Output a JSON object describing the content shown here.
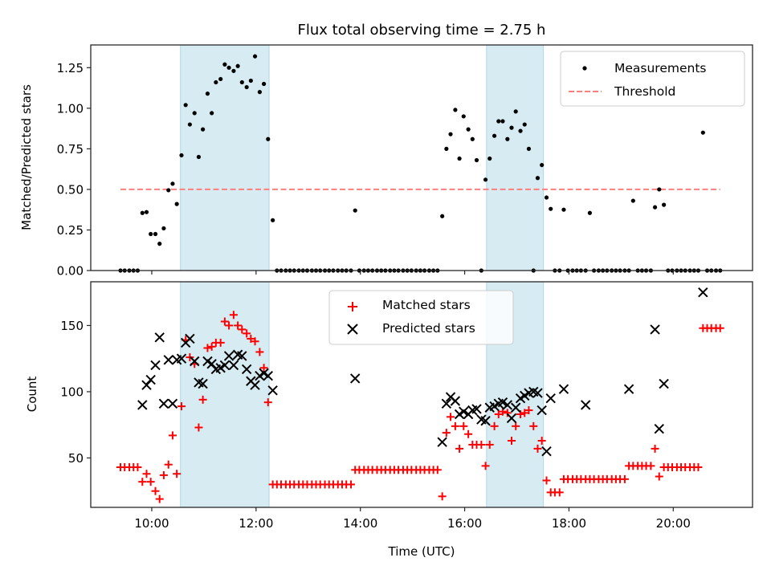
{
  "chart_data": [
    {
      "type": "scatter",
      "title": "Flux total observing time = 2.75 h",
      "xlabel": "",
      "ylabel": "Matched/Predicted stars",
      "xlim": [
        8.83,
        21.52
      ],
      "ylim": [
        0.0,
        1.39
      ],
      "yticks": [
        0.0,
        0.25,
        0.5,
        0.75,
        1.0,
        1.25
      ],
      "ytick_labels": [
        "0.00",
        "0.25",
        "0.50",
        "0.75",
        "1.00",
        "1.25"
      ],
      "xticks": [
        10,
        12,
        14,
        16,
        18,
        20
      ],
      "xtick_labels": [
        "10:00",
        "12:00",
        "14:00",
        "16:00",
        "18:00",
        "20:00"
      ],
      "show_xtick_labels": false,
      "grid": false,
      "legend": {
        "placement": "top-right",
        "entries": [
          "Measurements",
          "Threshold"
        ]
      },
      "shaded_spans": [
        [
          10.55,
          12.25
        ],
        [
          16.42,
          17.51
        ]
      ],
      "span_color": "#add8e6",
      "series": [
        {
          "name": "Measurements",
          "color": "#000000",
          "marker": "dot",
          "x": [
            9.4,
            9.48,
            9.57,
            9.65,
            9.73,
            9.82,
            9.9,
            9.98,
            10.07,
            10.15,
            10.23,
            10.32,
            10.4,
            10.48,
            10.57,
            10.65,
            10.73,
            10.82,
            10.9,
            10.98,
            11.07,
            11.15,
            11.23,
            11.32,
            11.4,
            11.48,
            11.57,
            11.65,
            11.73,
            11.82,
            11.9,
            11.98,
            12.07,
            12.15,
            12.23,
            12.32,
            12.4,
            12.48,
            12.57,
            12.65,
            12.73,
            12.82,
            12.9,
            12.98,
            13.07,
            13.15,
            13.23,
            13.32,
            13.4,
            13.48,
            13.57,
            13.65,
            13.73,
            13.82,
            13.9,
            13.98,
            14.07,
            14.15,
            14.23,
            14.32,
            14.4,
            14.48,
            14.57,
            14.65,
            14.73,
            14.82,
            14.9,
            14.98,
            15.07,
            15.15,
            15.23,
            15.32,
            15.4,
            15.48,
            15.57,
            15.65,
            15.73,
            15.82,
            15.9,
            15.98,
            16.07,
            16.15,
            16.23,
            16.32,
            16.4,
            16.48,
            16.57,
            16.65,
            16.73,
            16.82,
            16.9,
            16.98,
            17.07,
            17.15,
            17.23,
            17.32,
            17.4,
            17.48,
            17.57,
            17.65,
            17.73,
            17.82,
            17.9,
            17.98,
            18.07,
            18.15,
            18.23,
            18.32,
            18.4,
            18.48,
            18.57,
            18.65,
            18.73,
            18.82,
            18.9,
            18.98,
            19.07,
            19.15,
            19.23,
            19.32,
            19.4,
            19.48,
            19.57,
            19.65,
            19.73,
            19.82,
            19.9,
            19.98,
            20.07,
            20.15,
            20.23,
            20.32,
            20.4,
            20.48,
            20.57,
            20.65,
            20.73,
            20.82,
            20.9
          ],
          "y": [
            0,
            0,
            0,
            0,
            0,
            0.355,
            0.36,
            0.225,
            0.225,
            0.165,
            0.26,
            0.495,
            0.535,
            0.41,
            0.71,
            1.02,
            0.9,
            0.97,
            0.7,
            0.87,
            1.09,
            0.97,
            1.16,
            1.18,
            1.27,
            1.25,
            1.23,
            1.26,
            1.16,
            1.13,
            1.17,
            1.32,
            1.1,
            1.15,
            0.81,
            0.31,
            0,
            0,
            0,
            0,
            0,
            0,
            0,
            0,
            0,
            0,
            0,
            0,
            0,
            0,
            0,
            0,
            0,
            0,
            0.37,
            0,
            0,
            0,
            0,
            0,
            0,
            0,
            0,
            0,
            0,
            0,
            0,
            0,
            0,
            0,
            0,
            0,
            0,
            0,
            0.335,
            0.75,
            0.84,
            0.99,
            0.69,
            0.95,
            0.87,
            0.81,
            0.68,
            0,
            0.56,
            0.69,
            0.83,
            0.92,
            0.92,
            0.81,
            0.88,
            0.98,
            0.86,
            0.9,
            0.75,
            0,
            0.57,
            0.65,
            0.45,
            0.38,
            0,
            0,
            0.375,
            0,
            0,
            0,
            0,
            0,
            0.355,
            0,
            0,
            0,
            0,
            0,
            0,
            0,
            0,
            0,
            0.43,
            0,
            0,
            0,
            0,
            0.39,
            0.5,
            0.405,
            0,
            0,
            0,
            0,
            0,
            0,
            0,
            0,
            0.85,
            0,
            0,
            0,
            0
          ]
        },
        {
          "name": "Threshold",
          "color": "#ff7f7f",
          "style": "dashed",
          "x": [
            9.4,
            20.9
          ],
          "y": [
            0.5,
            0.5
          ]
        }
      ]
    },
    {
      "type": "scatter",
      "title": "",
      "xlabel": "Time (UTC)",
      "ylabel": "Count",
      "xlim": [
        8.83,
        21.52
      ],
      "ylim": [
        12.7,
        183
      ],
      "yticks": [
        50,
        100,
        150
      ],
      "ytick_labels": [
        "50",
        "100",
        "150"
      ],
      "xticks": [
        10,
        12,
        14,
        16,
        18,
        20
      ],
      "xtick_labels": [
        "10:00",
        "12:00",
        "14:00",
        "16:00",
        "18:00",
        "20:00"
      ],
      "grid": false,
      "legend": {
        "placement": "top-center",
        "entries": [
          "Matched stars",
          "Predicted stars"
        ]
      },
      "shaded_spans": [
        [
          10.55,
          12.25
        ],
        [
          16.42,
          17.51
        ]
      ],
      "span_color": "#add8e6",
      "series": [
        {
          "name": "Matched stars",
          "color": "#ff0000",
          "marker": "plus",
          "x": [
            9.4,
            9.48,
            9.57,
            9.65,
            9.73,
            9.82,
            9.9,
            9.98,
            10.07,
            10.15,
            10.23,
            10.32,
            10.4,
            10.48,
            10.57,
            10.65,
            10.73,
            10.82,
            10.9,
            10.98,
            11.07,
            11.15,
            11.23,
            11.32,
            11.4,
            11.48,
            11.57,
            11.65,
            11.73,
            11.82,
            11.9,
            11.98,
            12.07,
            12.15,
            12.23,
            12.32,
            12.4,
            12.48,
            12.57,
            12.65,
            12.73,
            12.82,
            12.9,
            12.98,
            13.07,
            13.15,
            13.23,
            13.32,
            13.4,
            13.48,
            13.57,
            13.65,
            13.73,
            13.82,
            13.9,
            13.98,
            14.07,
            14.15,
            14.23,
            14.32,
            14.4,
            14.48,
            14.57,
            14.65,
            14.73,
            14.82,
            14.9,
            14.98,
            15.07,
            15.15,
            15.23,
            15.32,
            15.4,
            15.48,
            15.57,
            15.65,
            15.73,
            15.82,
            15.9,
            15.98,
            16.07,
            16.15,
            16.23,
            16.32,
            16.4,
            16.48,
            16.57,
            16.65,
            16.73,
            16.82,
            16.9,
            16.98,
            17.07,
            17.15,
            17.23,
            17.32,
            17.4,
            17.48,
            17.57,
            17.65,
            17.73,
            17.82,
            17.9,
            17.98,
            18.07,
            18.15,
            18.23,
            18.32,
            18.4,
            18.48,
            18.57,
            18.65,
            18.73,
            18.82,
            18.9,
            18.98,
            19.07,
            19.15,
            19.23,
            19.32,
            19.4,
            19.48,
            19.57,
            19.65,
            19.73,
            19.82,
            19.9,
            19.98,
            20.07,
            20.15,
            20.23,
            20.32,
            20.4,
            20.48,
            20.57,
            20.65,
            20.73,
            20.82,
            20.9
          ],
          "y": [
            43,
            43,
            43,
            43,
            43,
            32,
            38,
            32,
            25,
            19,
            37,
            45,
            67,
            38,
            89,
            139,
            126,
            121,
            73,
            94,
            133,
            134,
            137,
            137,
            153,
            150,
            158,
            150,
            147,
            144,
            140,
            138,
            130,
            118,
            92,
            30,
            30,
            30,
            30,
            30,
            30,
            30,
            30,
            30,
            30,
            30,
            30,
            30,
            30,
            30,
            30,
            30,
            30,
            30,
            41,
            41,
            41,
            41,
            41,
            41,
            41,
            41,
            41,
            41,
            41,
            41,
            41,
            41,
            41,
            41,
            41,
            41,
            41,
            41,
            21,
            69,
            81,
            74,
            57,
            74,
            68,
            60,
            60,
            60,
            44,
            60,
            74,
            83,
            85,
            84,
            63,
            74,
            83,
            84,
            86,
            74,
            57,
            63,
            33,
            24,
            24,
            24,
            34,
            34,
            34,
            34,
            34,
            34,
            34,
            34,
            34,
            34,
            34,
            34,
            34,
            34,
            34,
            44,
            44,
            44,
            44,
            44,
            44,
            57,
            36,
            43,
            43,
            43,
            43,
            43,
            43,
            43,
            43,
            43,
            148,
            148,
            148,
            148,
            148
          ]
        },
        {
          "name": "Predicted stars",
          "color": "#000000",
          "marker": "x",
          "x": [
            9.82,
            9.9,
            9.98,
            10.07,
            10.15,
            10.23,
            10.32,
            10.4,
            10.48,
            10.57,
            10.65,
            10.73,
            10.82,
            10.9,
            10.98,
            11.07,
            11.15,
            11.23,
            11.32,
            11.4,
            11.48,
            11.57,
            11.65,
            11.73,
            11.82,
            11.9,
            11.98,
            12.07,
            12.15,
            12.23,
            12.32,
            13.9,
            15.57,
            15.65,
            15.73,
            15.82,
            15.9,
            15.98,
            16.07,
            16.15,
            16.23,
            16.32,
            16.4,
            16.48,
            16.57,
            16.65,
            16.73,
            16.82,
            16.9,
            16.98,
            17.07,
            17.15,
            17.23,
            17.32,
            17.4,
            17.48,
            17.57,
            17.65,
            17.9,
            18.32,
            19.15,
            19.65,
            19.73,
            19.82,
            20.57
          ],
          "y": [
            90,
            105,
            109,
            120,
            141,
            91,
            124,
            91,
            124,
            125,
            137,
            140,
            123,
            107,
            106,
            123,
            121,
            117,
            118,
            120,
            127,
            120,
            128,
            127,
            117,
            108,
            105,
            112,
            114,
            112,
            101,
            110,
            62,
            91,
            96,
            93,
            83,
            85,
            83,
            86,
            87,
            79,
            78,
            88,
            89,
            91,
            92,
            90,
            80,
            88,
            95,
            97,
            99,
            100,
            99,
            86,
            55,
            95,
            102,
            90,
            102,
            147,
            72,
            106,
            175
          ]
        }
      ]
    }
  ]
}
